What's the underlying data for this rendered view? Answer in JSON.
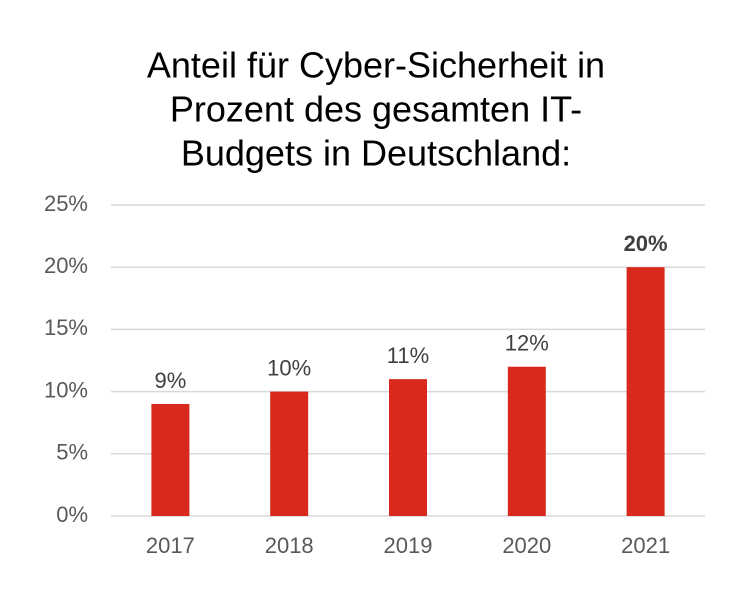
{
  "chart_data": {
    "type": "bar",
    "title": [
      "Anteil für Cyber-Sicherheit in",
      "Prozent des gesamten IT-",
      "Budgets in Deutschland:"
    ],
    "categories": [
      "2017",
      "2018",
      "2019",
      "2020",
      "2021"
    ],
    "values": [
      9,
      10,
      11,
      12,
      20
    ],
    "value_labels": [
      "9%",
      "10%",
      "11%",
      "12%",
      "20%"
    ],
    "color": "#d9291c",
    "ylim": [
      0,
      25
    ],
    "yticks": [
      {
        "value": 0,
        "label": "0%"
      },
      {
        "value": 5,
        "label": "5%"
      },
      {
        "value": 10,
        "label": "10%"
      },
      {
        "value": 15,
        "label": "15%"
      },
      {
        "value": 20,
        "label": "20%"
      },
      {
        "value": 25,
        "label": "25%"
      }
    ],
    "grid": true
  }
}
